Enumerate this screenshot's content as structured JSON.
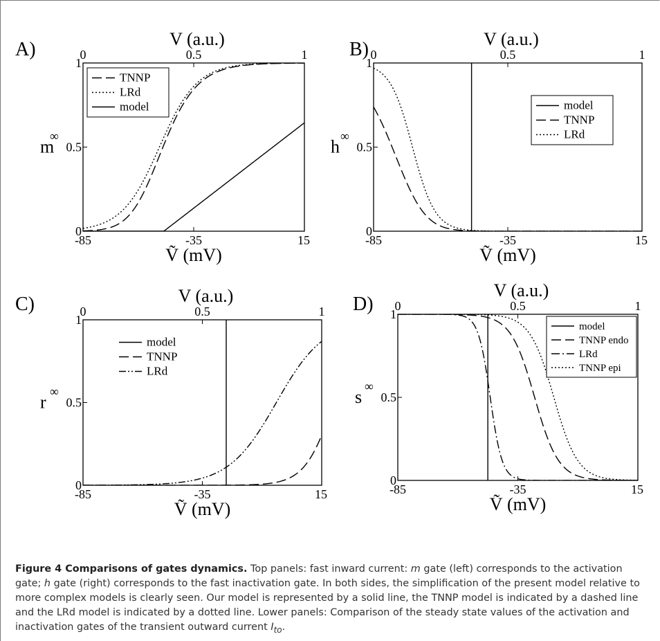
{
  "figure": {
    "caption_title": "Figure 4 Comparisons of gates dynamics.",
    "caption_parts": {
      "p1": " Top panels: fast inward current: ",
      "m": "m",
      "p2": " gate (left) corresponds to the activation gate; ",
      "h": "h",
      "p3": " gate (right) corresponds to the fast inactivation gate. In both sides, the simplification of the present model relative to more complex models is clearly seen. Our model is represented by a solid line, the TNNP model is indicated by a dashed line and the LRd model is indicated by a dotted line. Lower panels: Comparison of the steady state values of the activation and inactivation gates of the transient outward current ",
      "I": "I",
      "sub": "to",
      "p4": "."
    }
  },
  "chart_data": [
    {
      "panel_label": "A)",
      "type": "line",
      "top_axis_label": "V (a.u.)",
      "top_ticks": [
        "0",
        "0.5",
        "1"
      ],
      "xlabel": "Ṽ (mV)",
      "x_ticks": [
        "-85",
        "-35",
        "15"
      ],
      "ylabel_base": "m",
      "ylabel_sup": "∞",
      "y_ticks": [
        "0",
        "0.5",
        "1"
      ],
      "xlim": [
        -85,
        15
      ],
      "ylim": [
        0,
        1
      ],
      "legend_position": "top-left",
      "series": [
        {
          "name": "TNNP",
          "style": "dashed",
          "kind": "sigmoid",
          "vhalf": -56.86,
          "k": 9.03,
          "dir": 1,
          "power": 2
        },
        {
          "name": "LRd",
          "style": "dotted",
          "kind": "sigmoid",
          "vhalf": -50.5,
          "k": 8.5,
          "dir": 1,
          "power": 1
        },
        {
          "name": "model",
          "style": "solid",
          "kind": "linear",
          "x0": -48.5,
          "slope": 0.01015
        }
      ]
    },
    {
      "panel_label": "B)",
      "type": "line",
      "top_axis_label": "V (a.u.)",
      "top_ticks": [
        "0",
        "0.5",
        "1"
      ],
      "xlabel": "Ṽ (mV)",
      "x_ticks": [
        "-85",
        "-35",
        "15"
      ],
      "ylabel_base": "h",
      "ylabel_sup": "∞",
      "y_ticks": [
        "0",
        "0.5",
        "1"
      ],
      "xlim": [
        -85,
        15
      ],
      "ylim": [
        0,
        1
      ],
      "legend_position": "top-right",
      "series": [
        {
          "name": "model",
          "style": "solid",
          "kind": "vertical",
          "x": -48.5
        },
        {
          "name": "TNNP",
          "style": "dashed",
          "kind": "sigmoid",
          "vhalf": -71.55,
          "k": 7.43,
          "dir": -1,
          "power": 2
        },
        {
          "name": "LRd",
          "style": "dotted",
          "kind": "sigmoid",
          "vhalf": -70.5,
          "k": 4.2,
          "dir": -1,
          "power": 1
        }
      ]
    },
    {
      "panel_label": "C)",
      "type": "line",
      "top_axis_label": "V (a.u.)",
      "top_ticks": [
        "0",
        "0.5",
        "1"
      ],
      "xlabel": "Ṽ (mV)",
      "x_ticks": [
        "-85",
        "-35",
        "15"
      ],
      "ylabel_base": "r",
      "ylabel_sup": "∞",
      "y_ticks": [
        "0",
        "0.5",
        "1"
      ],
      "xlim": [
        -85,
        15
      ],
      "ylim": [
        0,
        1
      ],
      "legend_position": "top-left",
      "series": [
        {
          "name": "model",
          "style": "solid",
          "kind": "vertical",
          "x": -25
        },
        {
          "name": "TNNP",
          "style": "dashed",
          "kind": "sigmoid",
          "vhalf": 20,
          "k": 6,
          "dir": 1,
          "power": 1
        },
        {
          "name": "LRd",
          "style": "dashdotdot",
          "kind": "sigmoid",
          "vhalf": -4,
          "k": 10,
          "dir": 1,
          "power": 1
        }
      ]
    },
    {
      "panel_label": "D)",
      "type": "line",
      "top_axis_label": "V (a.u.)",
      "top_ticks": [
        "0",
        "0.5",
        "1"
      ],
      "xlabel": "Ṽ (mV)",
      "x_ticks": [
        "-85",
        "-35",
        "15"
      ],
      "ylabel_base": "s",
      "ylabel_sup": "∞",
      "y_ticks": [
        "0",
        "0.5",
        "1"
      ],
      "xlim": [
        -85,
        15
      ],
      "ylim": [
        0,
        1
      ],
      "legend_position": "top-right",
      "series": [
        {
          "name": "model",
          "style": "solid",
          "kind": "vertical",
          "x": -47.5
        },
        {
          "name": "TNNP endo",
          "style": "dashed",
          "kind": "sigmoid",
          "vhalf": -28,
          "k": 5,
          "dir": -1,
          "power": 1
        },
        {
          "name": "LRd",
          "style": "dashdot",
          "kind": "sigmoid",
          "vhalf": -46.5,
          "k": 2.5,
          "dir": -1,
          "power": 1
        },
        {
          "name": "TNNP epi",
          "style": "dotted",
          "kind": "sigmoid",
          "vhalf": -20,
          "k": 5,
          "dir": -1,
          "power": 1
        }
      ]
    }
  ]
}
